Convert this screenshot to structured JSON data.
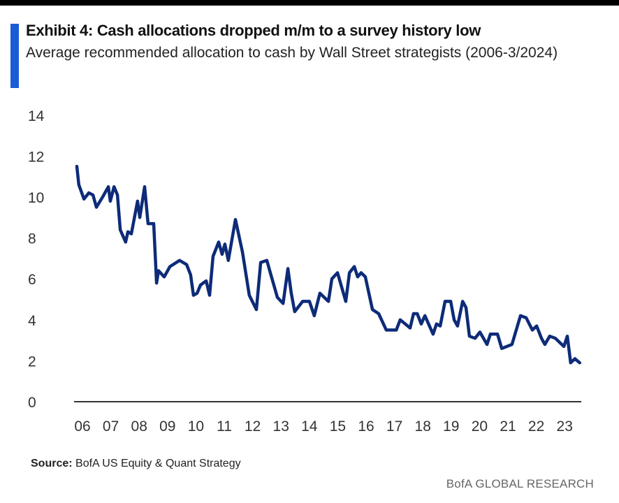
{
  "chart_data": {
    "type": "line",
    "title": "Exhibit 4: Cash allocations dropped m/m to a survey history low",
    "subtitle": "Average recommended allocation to cash by Wall Street strategists (2006-3/2024)",
    "xlabel": "",
    "ylabel": "",
    "ylim": [
      0,
      14
    ],
    "xlim": [
      2006,
      2024.2
    ],
    "yticks": [
      0,
      2,
      4,
      6,
      8,
      10,
      12,
      14
    ],
    "xtick_labels": [
      "06",
      "07",
      "08",
      "09",
      "10",
      "11",
      "12",
      "13",
      "14",
      "15",
      "16",
      "17",
      "18",
      "19",
      "20",
      "21",
      "22",
      "23"
    ],
    "xtick_years": [
      2006,
      2007,
      2008,
      2009,
      2010,
      2011,
      2012,
      2013,
      2014,
      2015,
      2016,
      2017,
      2018,
      2019,
      2020,
      2021,
      2022,
      2023
    ],
    "grid": false,
    "line_color": "#0d2b78",
    "series": [
      {
        "name": "Average recommended allocation to cash (%)",
        "x": [
          2006.0,
          2006.07,
          2006.25,
          2006.42,
          2006.57,
          2006.69,
          2006.91,
          2007.11,
          2007.18,
          2007.31,
          2007.43,
          2007.53,
          2007.72,
          2007.8,
          2007.92,
          2008.14,
          2008.22,
          2008.39,
          2008.51,
          2008.71,
          2008.81,
          2008.88,
          2009.08,
          2009.28,
          2009.62,
          2009.87,
          2010.01,
          2010.11,
          2010.24,
          2010.36,
          2010.56,
          2010.68,
          2010.8,
          2011.0,
          2011.12,
          2011.22,
          2011.34,
          2011.59,
          2011.84,
          2012.08,
          2012.33,
          2012.48,
          2012.7,
          2012.82,
          2013.07,
          2013.27,
          2013.44,
          2013.56,
          2013.68,
          2013.96,
          2014.2,
          2014.37,
          2014.57,
          2014.87,
          2014.99,
          2015.19,
          2015.48,
          2015.61,
          2015.78,
          2015.9,
          2016.02,
          2016.17,
          2016.42,
          2016.64,
          2016.91,
          2017.26,
          2017.4,
          2017.58,
          2017.75,
          2017.87,
          2018.0,
          2018.14,
          2018.27,
          2018.56,
          2018.68,
          2018.81,
          2018.98,
          2019.18,
          2019.3,
          2019.42,
          2019.6,
          2019.72,
          2019.84,
          2020.04,
          2020.21,
          2020.46,
          2020.58,
          2020.83,
          2020.98,
          2021.34,
          2021.64,
          2021.84,
          2022.06,
          2022.21,
          2022.38,
          2022.5,
          2022.67,
          2022.87,
          2023.17,
          2023.29,
          2023.41,
          2023.56,
          2023.73
        ],
        "y": [
          11.5,
          10.6,
          9.9,
          10.2,
          10.1,
          9.5,
          10.0,
          10.5,
          9.8,
          10.5,
          10.1,
          8.4,
          7.8,
          8.3,
          8.2,
          9.8,
          9.0,
          10.5,
          8.7,
          8.7,
          5.8,
          6.4,
          6.1,
          6.6,
          6.9,
          6.7,
          6.2,
          5.2,
          5.3,
          5.7,
          5.9,
          5.2,
          7.1,
          7.8,
          7.2,
          7.7,
          6.9,
          8.9,
          7.3,
          5.2,
          4.5,
          6.8,
          6.9,
          6.3,
          5.1,
          4.8,
          6.5,
          5.3,
          4.4,
          4.9,
          4.9,
          4.2,
          5.3,
          4.9,
          6.0,
          6.3,
          4.9,
          6.3,
          6.6,
          6.1,
          6.3,
          6.1,
          4.5,
          4.3,
          3.5,
          3.5,
          4.0,
          3.8,
          3.6,
          4.3,
          4.3,
          3.8,
          4.2,
          3.3,
          3.8,
          3.7,
          4.9,
          4.9,
          4.0,
          3.7,
          4.9,
          4.6,
          3.2,
          3.1,
          3.4,
          2.8,
          3.3,
          3.3,
          2.6,
          2.8,
          4.2,
          4.1,
          3.5,
          3.7,
          3.1,
          2.8,
          3.2,
          3.1,
          2.7,
          3.2,
          1.9,
          2.1,
          1.9
        ]
      }
    ],
    "source_label": "Source:",
    "source_text": "BofA US Equity & Quant Strategy",
    "brand": "BofA GLOBAL RESEARCH"
  }
}
